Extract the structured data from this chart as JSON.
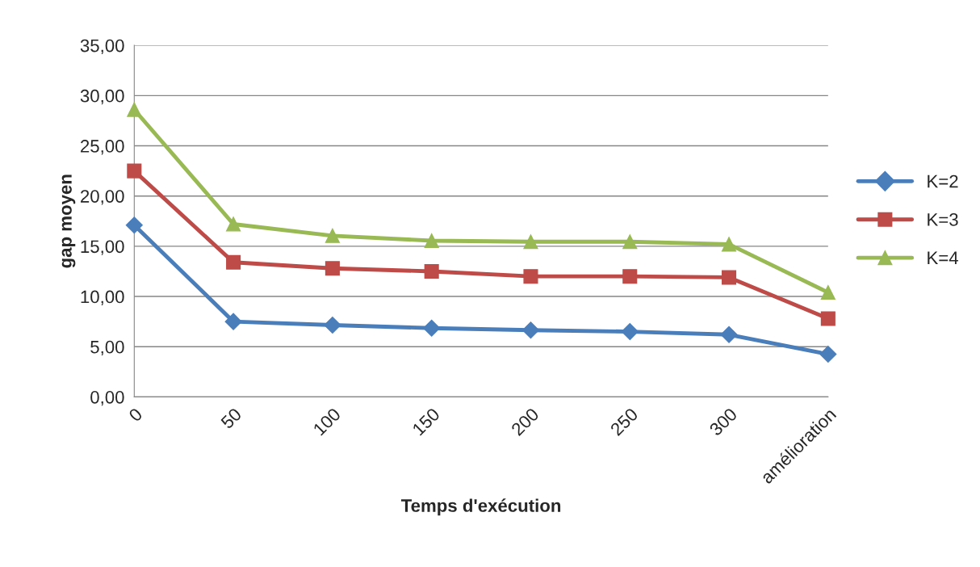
{
  "chart_data": {
    "type": "line",
    "xlabel": "Temps d'exécution",
    "ylabel": "gap moyen",
    "categories": [
      "0",
      "50",
      "100",
      "150",
      "200",
      "250",
      "300",
      "amélioration"
    ],
    "series": [
      {
        "name": "K=2",
        "color": "#4a7ebb",
        "marker": "diamond",
        "values": [
          17.1,
          7.5,
          7.15,
          6.85,
          6.65,
          6.5,
          6.2,
          4.25
        ]
      },
      {
        "name": "K=3",
        "color": "#be4b48",
        "marker": "square",
        "values": [
          22.5,
          13.4,
          12.8,
          12.5,
          12.0,
          12.0,
          11.9,
          7.8
        ]
      },
      {
        "name": "K=4",
        "color": "#98b954",
        "marker": "triangle",
        "values": [
          28.6,
          17.2,
          16.05,
          15.55,
          15.45,
          15.45,
          15.2,
          10.4
        ]
      }
    ],
    "ylim": [
      0,
      35
    ],
    "yticks": [
      {
        "value": 0,
        "label": "0,00"
      },
      {
        "value": 5,
        "label": "5,00"
      },
      {
        "value": 10,
        "label": "10,00"
      },
      {
        "value": 15,
        "label": "15,00"
      },
      {
        "value": 20,
        "label": "20,00"
      },
      {
        "value": 25,
        "label": "25,00"
      },
      {
        "value": 30,
        "label": "30,00"
      },
      {
        "value": 35,
        "label": "35,00"
      }
    ],
    "grid": "y",
    "legend": "right",
    "line_style": "solid"
  }
}
